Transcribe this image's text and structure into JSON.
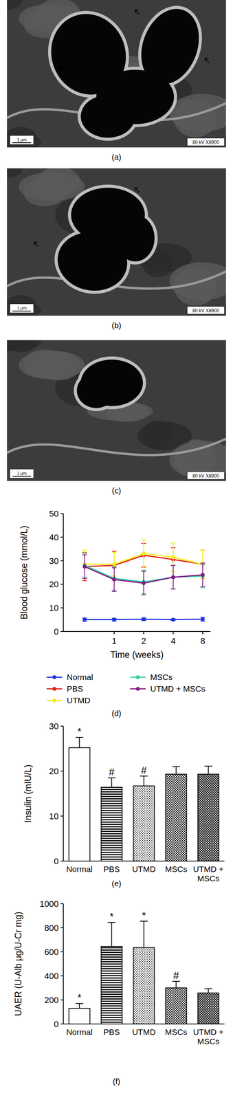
{
  "images": [
    {
      "label": "(a)",
      "caption": "80 kV X8900",
      "scale_bar": "1 μm"
    },
    {
      "label": "(b)",
      "caption": "80 kV X8900",
      "scale_bar": "1 μm"
    },
    {
      "label": "(c)",
      "caption": "80 kV X8900",
      "scale_bar": "1 μm"
    }
  ],
  "chart_data": [
    {
      "type": "line",
      "label": "(d)",
      "x_label": "Time (weeks)",
      "y_label": "Blood glucose (mmol/L)",
      "categories": [
        null,
        "1",
        "2",
        "4",
        "8"
      ],
      "ylim": [
        0,
        50
      ],
      "yticks": [
        0,
        10,
        20,
        30,
        40,
        50
      ],
      "legend": "bottom",
      "marker": "circle",
      "series": [
        {
          "name": "Normal",
          "color": "#1f35e0",
          "values": [
            5,
            5,
            5.2,
            5,
            5.2
          ],
          "errors": [
            0.7,
            0.6,
            0.6,
            0.3,
            0.8
          ]
        },
        {
          "name": "PBS",
          "color": "#e3201b",
          "values": [
            27.5,
            28,
            32.3,
            30.5,
            28.5
          ],
          "errors": [
            6,
            6,
            5,
            5,
            6
          ]
        },
        {
          "name": "UTMD",
          "color": "#f2ee1c",
          "values": [
            28.5,
            28.5,
            33,
            31.5,
            28.5
          ],
          "errors": [
            6,
            5,
            6,
            6,
            6
          ]
        },
        {
          "name": "MSCs",
          "color": "#2fd0a2",
          "values": [
            28,
            22.5,
            21,
            23,
            23.5
          ],
          "errors": [
            5,
            5,
            5,
            5,
            5
          ]
        },
        {
          "name": "UTMD + MSCs",
          "color": "#861a86",
          "values": [
            27.5,
            22,
            20.5,
            23,
            24
          ],
          "errors": [
            5,
            5,
            5,
            5,
            5
          ]
        }
      ]
    },
    {
      "type": "bar",
      "label": "(e)",
      "y_label": "Insulin (mIU/L)",
      "categories": [
        "Normal",
        "PBS",
        "UTMD",
        "MSCs",
        "UTMD + MSCs"
      ],
      "values": [
        25.2,
        16.4,
        16.7,
        19.3,
        19.3
      ],
      "errors": [
        2.3,
        2.1,
        2.2,
        1.7,
        1.8
      ],
      "annotations": [
        "*",
        "#",
        "#",
        null,
        null
      ],
      "ylim": [
        0,
        30
      ],
      "yticks": [
        0,
        10,
        20,
        30
      ]
    },
    {
      "type": "bar",
      "label": "(f)",
      "y_label": "UAER (U-Alb μg/U-Cr mg)",
      "categories": [
        "Normal",
        "PBS",
        "UTMD",
        "MSCs",
        "UTMD + MSCs"
      ],
      "values": [
        130,
        645,
        635,
        300,
        258
      ],
      "errors": [
        40,
        200,
        220,
        55,
        35
      ],
      "annotations": [
        "*",
        "*",
        "*",
        "#",
        null
      ],
      "ylim": [
        0,
        1000
      ],
      "yticks": [
        0,
        200,
        400,
        600,
        800,
        1000
      ]
    }
  ]
}
